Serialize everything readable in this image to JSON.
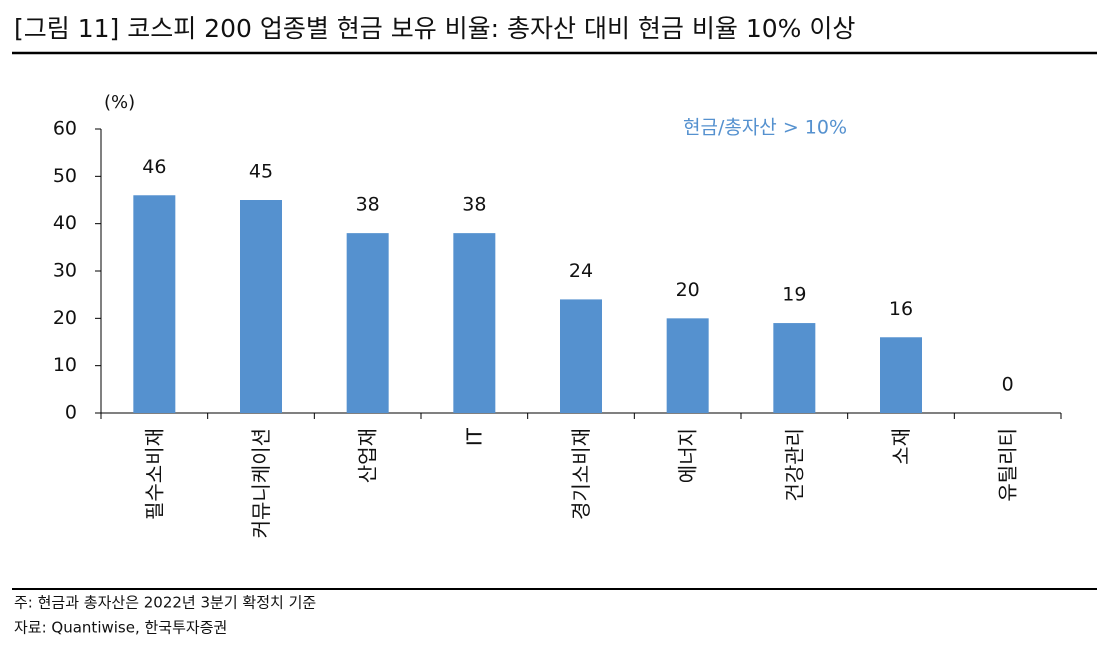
{
  "chart_data": {
    "type": "bar",
    "title": "[그림 11] 코스피 200 업종별 현금 보유 비율: 총자산 대비 현금 비율 10% 이상",
    "y_unit": "(%)",
    "annotation": "현금/총자산 > 10%",
    "categories": [
      "필수소비재",
      "커뮤니케이션",
      "산업재",
      "IT",
      "경기소비재",
      "에너지",
      "건강관리",
      "소재",
      "유틸리티"
    ],
    "values": [
      46,
      45,
      38,
      38,
      24,
      20,
      19,
      16,
      0
    ],
    "color": "#5591cf",
    "ylim": [
      0,
      60
    ],
    "yticks": [
      0,
      10,
      20,
      30,
      40,
      50,
      60
    ],
    "grid": false,
    "notes": [
      "주: 현금과 총자산은 2022년 3분기 확정치 기준",
      "자료: Quantiwise, 한국투자증권"
    ]
  }
}
